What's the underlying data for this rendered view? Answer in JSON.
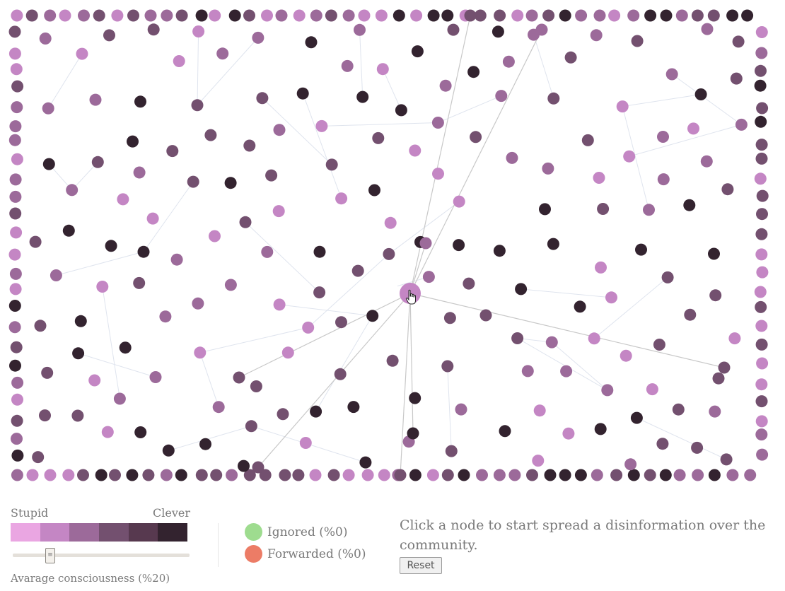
{
  "scale": {
    "left_label": "Stupid",
    "right_label": "Clever",
    "colors": [
      "#eaa6e2",
      "#c486c4",
      "#9c6a9a",
      "#73506f",
      "#57394f",
      "#33232f"
    ]
  },
  "slider": {
    "thumb_glyph": "≡",
    "value_percent": 20,
    "label": "Avarage consciousness (%20)"
  },
  "legend": [
    {
      "label": "Ignored (%0)",
      "color": "#9edc8f"
    },
    {
      "label": "Forwarded (%0)",
      "color": "#ec7c66"
    }
  ],
  "instructions": "Click a node to start spread a disinformation over the community.",
  "reset_label": "Reset",
  "graph": {
    "node_colors": [
      "#c486c4",
      "#9c6a9a",
      "#73506f",
      "#33232f"
    ],
    "edge_color": "#c8c8c8",
    "faint_edge_color": "#dfe4ee",
    "cursor_icon": "hand-pointer-icon"
  }
}
